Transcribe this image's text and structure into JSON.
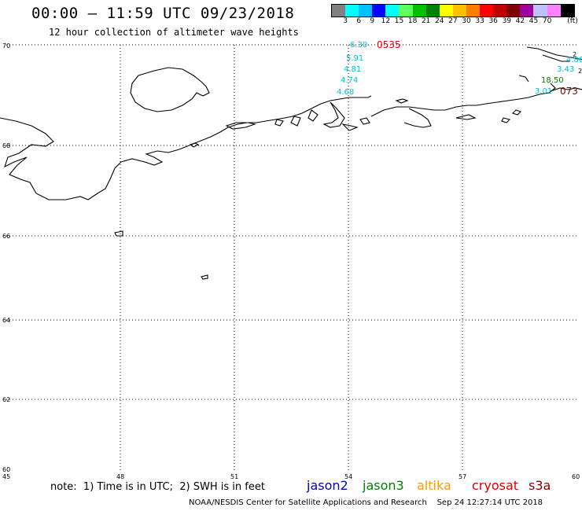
{
  "header": {
    "title": "00:00 – 11:59 UTC 09/23/2018",
    "subtitle": "12 hour collection of altimeter wave heights"
  },
  "legend": {
    "unit": "(ft)",
    "colors": [
      "#808080",
      "#00ffff",
      "#00c0ff",
      "#0000ff",
      "#00ffff",
      "#60ff60",
      "#00c000",
      "#008000",
      "#ffff00",
      "#ffc000",
      "#ff8000",
      "#ff0000",
      "#c00000",
      "#800000",
      "#a000a0",
      "#c0c0ff",
      "#ff80ff",
      "#000000"
    ],
    "labels": [
      "3",
      "6",
      "9",
      "12",
      "15",
      "18",
      "21",
      "24",
      "27",
      "30",
      "33",
      "36",
      "39",
      "42",
      "45",
      "70"
    ]
  },
  "map": {
    "lat_labels": [
      "70",
      "68",
      "66",
      "64",
      "62",
      "60"
    ],
    "lon_labels": [
      "45",
      "48",
      "51",
      "54",
      "57",
      "60"
    ],
    "observations": [
      {
        "text": "6.30",
        "color": "#00c0d0"
      },
      {
        "text": "5.91",
        "color": "#00c0d0"
      },
      {
        "text": "4.81",
        "color": "#00c0d0"
      },
      {
        "text": "4.74",
        "color": "#00c0d0"
      },
      {
        "text": "4.68",
        "color": "#00c0d0"
      },
      {
        "text": "0535",
        "color": "#e00000"
      },
      {
        "text": "4.86",
        "color": "#00c0d0"
      },
      {
        "text": "3.43",
        "color": "#00c0d0"
      },
      {
        "text": "18.50",
        "color": "#008000"
      },
      {
        "text": "3.01",
        "color": "#00c0d0"
      },
      {
        "text": "073",
        "color": "#800000"
      },
      {
        "text": "2",
        "color": "#000000"
      },
      {
        "text": "2",
        "color": "#000000"
      }
    ]
  },
  "note": "note:  1) Time is in UTC;  2) SWH is in feet",
  "satellites": [
    {
      "name": "jason2",
      "color": "#0000c0"
    },
    {
      "name": "jason3",
      "color": "#008000"
    },
    {
      "name": "altika",
      "color": "#ff9900"
    },
    {
      "name": "cryosat",
      "color": "#e00000"
    },
    {
      "name": "s3a",
      "color": "#800000"
    }
  ],
  "footer": "NOAA/NESDIS Center for Satellite Applications and Research    Sep 24 12:27:14 UTC 2018"
}
